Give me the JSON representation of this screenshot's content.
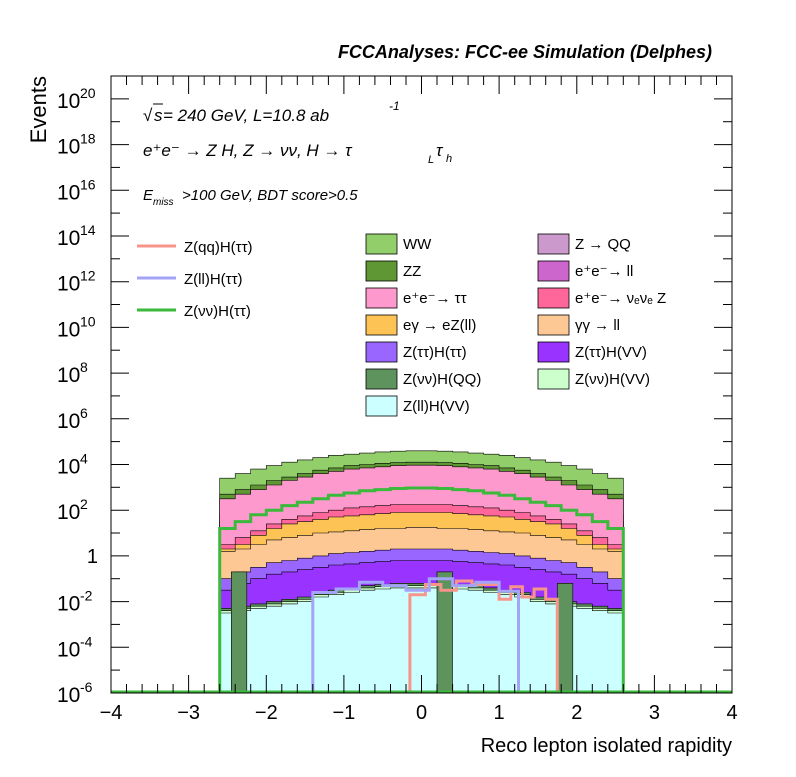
{
  "chart_data": {
    "type": "area",
    "title": "FCCAnalyses: FCC-ee Simulation (Delphes)",
    "xlabel": "Reco lepton isolated rapidity",
    "ylabel": "Events",
    "xlim": [
      -4,
      4
    ],
    "ylim_log10": [
      -6,
      21
    ],
    "log_y": true,
    "x_ticks": [
      "−4",
      "−3",
      "−2",
      "−1",
      "0",
      "1",
      "2",
      "3",
      "4"
    ],
    "y_tick_labels": [
      {
        "base": "10",
        "exp": "20",
        "e": 20
      },
      {
        "base": "10",
        "exp": "18",
        "e": 18
      },
      {
        "base": "10",
        "exp": "16",
        "e": 16
      },
      {
        "base": "10",
        "exp": "14",
        "e": 14
      },
      {
        "base": "10",
        "exp": "12",
        "e": 12
      },
      {
        "base": "10",
        "exp": "10",
        "e": 10
      },
      {
        "base": "10",
        "exp": "8",
        "e": 8
      },
      {
        "base": "10",
        "exp": "6",
        "e": 6
      },
      {
        "base": "10",
        "exp": "4",
        "e": 4
      },
      {
        "base": "10",
        "exp": "2",
        "e": 2
      },
      {
        "base": "1",
        "exp": "",
        "e": 0
      },
      {
        "base": "10",
        "exp": "-2",
        "e": -2
      },
      {
        "base": "10",
        "exp": "-4",
        "e": -4
      },
      {
        "base": "10",
        "exp": "-6",
        "e": -6
      }
    ],
    "annotations": {
      "sqrt_s": "s",
      "energy_lumi": " = 240 GeV, L=10.8 ab",
      "lumi_exp": "-1",
      "process": "e⁺e⁻ → Z H, Z  → νν, H → τ",
      "tau_l": "L",
      "tau_h": "h",
      "cut_prefix": "E",
      "cut_sub": "miss",
      "cut_rest": ">100 GeV, BDT score>0.5"
    },
    "signals": [
      {
        "name": "Z(qq)H(ττ)",
        "color": "#f8958b",
        "bins": [
          [
            -0.15,
            0.05,
            -1.7
          ],
          [
            0.05,
            0.25,
            -1.25
          ],
          [
            0.25,
            0.45,
            -1.5
          ],
          [
            0.45,
            0.65,
            -1.1
          ],
          [
            0.65,
            1.0,
            -1.25
          ],
          [
            1.0,
            1.15,
            -1.9
          ],
          [
            1.15,
            1.3,
            -1.35
          ],
          [
            1.3,
            1.45,
            -1.8
          ],
          [
            1.45,
            1.6,
            -1.45
          ],
          [
            1.6,
            1.75,
            -1.9
          ]
        ]
      },
      {
        "name": "Z(ll)H(ττ)",
        "color": "#a3a3f7",
        "bins": [
          [
            -1.4,
            -1.1,
            -1.6
          ],
          [
            -1.1,
            -0.8,
            -1.45
          ],
          [
            -0.8,
            -0.5,
            -1.15
          ],
          [
            -0.5,
            -0.2,
            -1.3
          ],
          [
            -0.2,
            0.1,
            -1.5
          ],
          [
            0.1,
            0.4,
            -1.0
          ],
          [
            0.4,
            0.7,
            -1.3
          ],
          [
            0.7,
            1.0,
            -1.15
          ],
          [
            1.0,
            1.25,
            -1.55
          ]
        ]
      },
      {
        "name": "Z(νν)H(ττ)",
        "color": "#3bb93b",
        "bins": [
          [
            -2.6,
            -2.4,
            1.2
          ],
          [
            -2.4,
            -2.2,
            1.5
          ],
          [
            -2.2,
            -2.0,
            1.8
          ],
          [
            -2.0,
            -1.8,
            2.0
          ],
          [
            -1.8,
            -1.6,
            2.2
          ],
          [
            -1.6,
            -1.4,
            2.35
          ],
          [
            -1.4,
            -1.2,
            2.5
          ],
          [
            -1.2,
            -1.0,
            2.65
          ],
          [
            -1.0,
            -0.8,
            2.75
          ],
          [
            -0.8,
            -0.6,
            2.85
          ],
          [
            -0.6,
            -0.4,
            2.9
          ],
          [
            -0.4,
            -0.2,
            2.95
          ],
          [
            -0.2,
            0.0,
            2.97
          ],
          [
            0.0,
            0.2,
            2.97
          ],
          [
            0.2,
            0.4,
            2.95
          ],
          [
            0.4,
            0.6,
            2.9
          ],
          [
            0.6,
            0.8,
            2.85
          ],
          [
            0.8,
            1.0,
            2.75
          ],
          [
            1.0,
            1.2,
            2.65
          ],
          [
            1.2,
            1.4,
            2.5
          ],
          [
            1.4,
            1.6,
            2.35
          ],
          [
            1.6,
            1.8,
            2.2
          ],
          [
            1.8,
            2.0,
            2.0
          ],
          [
            2.0,
            2.2,
            1.8
          ],
          [
            2.2,
            2.4,
            1.5
          ],
          [
            2.4,
            2.6,
            1.2
          ]
        ]
      }
    ],
    "backgrounds": [
      {
        "name": "WW",
        "color": "#92cf6a"
      },
      {
        "name": "Z → QQ",
        "color": "#cc99cc"
      },
      {
        "name": "ZZ",
        "color": "#5e9733"
      },
      {
        "name": "e⁺e⁻→ ll",
        "color": "#cc66cc"
      },
      {
        "name": "e⁺e⁻→ ττ",
        "color": "#fd99cc"
      },
      {
        "name": "e⁺e⁻→ νₑνₑ Z",
        "color": "#ff6699"
      },
      {
        "name": "eγ → eZ(ll)",
        "color": "#fdc355"
      },
      {
        "name": "γγ → ll",
        "color": "#fec895"
      },
      {
        "name": "Z(ττ)H(ττ)",
        "color": "#9966ff"
      },
      {
        "name": "Z(ττ)H(VV)",
        "color": "#9933ff"
      },
      {
        "name": "Z(νν)H(QQ)",
        "color": "#5e935e"
      },
      {
        "name": "Z(νν)H(VV)",
        "color": "#ccffcc"
      },
      {
        "name": "Z(ll)H(VV)",
        "color": "#ccffff"
      }
    ],
    "stack_bins": {
      "x_edges": [
        -2.6,
        -2.4,
        -2.2,
        -2.0,
        -1.8,
        -1.6,
        -1.4,
        -1.2,
        -1.0,
        -0.8,
        -0.6,
        -0.4,
        -0.2,
        0.0,
        0.2,
        0.4,
        0.6,
        0.8,
        1.0,
        1.2,
        1.4,
        1.6,
        1.8,
        2.0,
        2.2,
        2.4,
        2.6
      ],
      "log_layers_top": {
        "Z(ll)H(VV)": [
          -2.5,
          -2.4,
          -2.3,
          -2.2,
          -2.1,
          -2.0,
          -1.8,
          -1.7,
          -1.6,
          -1.5,
          -1.45,
          -1.4,
          -1.4,
          -1.4,
          -1.4,
          -1.45,
          -1.5,
          -1.6,
          -1.7,
          -1.8,
          -2.0,
          -2.1,
          -2.2,
          -2.3,
          -2.4,
          -2.5
        ],
        "Z(nn)H(VV)": [
          -2.4,
          -2.3,
          -2.2,
          -2.1,
          -2.0,
          -1.9,
          -1.7,
          -1.6,
          -1.5,
          -1.4,
          -1.35,
          -1.3,
          -1.3,
          -1.3,
          -1.3,
          -1.35,
          -1.4,
          -1.5,
          -1.6,
          -1.7,
          -1.9,
          -2.0,
          -2.1,
          -2.2,
          -2.3,
          -2.4
        ],
        "Z(nn)H(QQ)": [
          -2.3,
          -2.2,
          -2.1,
          -2.0,
          -1.9,
          -1.8,
          -1.6,
          -1.5,
          -1.4,
          -1.3,
          -1.25,
          -1.2,
          -1.2,
          -1.2,
          -1.2,
          -1.25,
          -1.3,
          -1.4,
          -1.5,
          -1.6,
          -1.8,
          -1.9,
          -2.0,
          -2.1,
          -2.2,
          -2.3
        ],
        "Z(tt)H(VV)": [
          -1.5,
          -1.2,
          -1.0,
          -0.8,
          -0.7,
          -0.6,
          -0.5,
          -0.4,
          -0.35,
          -0.3,
          -0.25,
          -0.2,
          -0.2,
          -0.2,
          -0.2,
          -0.25,
          -0.3,
          -0.35,
          -0.4,
          -0.5,
          -0.6,
          -0.7,
          -0.8,
          -1.0,
          -1.2,
          -1.5
        ],
        "Z(tt)H(tt)": [
          -1.0,
          -0.7,
          -0.5,
          -0.3,
          -0.2,
          -0.1,
          0.0,
          0.1,
          0.15,
          0.2,
          0.25,
          0.3,
          0.3,
          0.3,
          0.3,
          0.25,
          0.2,
          0.15,
          0.1,
          0.0,
          -0.1,
          -0.2,
          -0.3,
          -0.5,
          -0.7,
          -1.0
        ],
        "gg-ll": [
          0.2,
          0.3,
          0.5,
          0.7,
          0.8,
          0.9,
          1.0,
          1.05,
          1.1,
          1.15,
          1.2,
          1.2,
          1.25,
          1.25,
          1.2,
          1.2,
          1.15,
          1.1,
          1.05,
          1.0,
          0.9,
          0.8,
          0.7,
          0.5,
          0.3,
          0.2
        ],
        "eg-eZ": [
          0.3,
          0.5,
          0.9,
          1.2,
          1.4,
          1.5,
          1.6,
          1.7,
          1.75,
          1.8,
          1.85,
          1.9,
          1.9,
          1.9,
          1.9,
          1.85,
          1.8,
          1.75,
          1.7,
          1.6,
          1.5,
          1.4,
          1.2,
          0.9,
          0.5,
          0.3
        ],
        "ee-nnZ": [
          0.5,
          0.8,
          1.1,
          1.4,
          1.6,
          1.75,
          1.9,
          2.0,
          2.1,
          2.15,
          2.2,
          2.25,
          2.25,
          2.25,
          2.25,
          2.2,
          2.15,
          2.1,
          2.0,
          1.9,
          1.75,
          1.6,
          1.4,
          1.1,
          0.8,
          0.5
        ],
        "ee-tt": [
          2.5,
          2.7,
          2.9,
          3.1,
          3.3,
          3.45,
          3.6,
          3.7,
          3.8,
          3.85,
          3.9,
          3.95,
          3.97,
          3.97,
          3.95,
          3.9,
          3.85,
          3.8,
          3.7,
          3.6,
          3.45,
          3.3,
          3.1,
          2.9,
          2.7,
          2.5
        ],
        "ee-ll": [
          1.8,
          2.2,
          2.5,
          2.7,
          2.9,
          3.0,
          3.1,
          3.2,
          3.25,
          3.3,
          3.33,
          3.35,
          3.37,
          3.37,
          3.35,
          3.33,
          3.3,
          3.25,
          3.2,
          3.1,
          3.0,
          2.9,
          2.7,
          2.5,
          2.2,
          1.8
        ],
        "ZZ": [
          2.7,
          2.9,
          3.1,
          3.3,
          3.45,
          3.6,
          3.75,
          3.85,
          3.95,
          4.0,
          4.05,
          4.08,
          4.1,
          4.1,
          4.08,
          4.05,
          4.0,
          3.95,
          3.85,
          3.75,
          3.6,
          3.45,
          3.3,
          3.1,
          2.9,
          2.7
        ],
        "Z-QQ": [
          1.5,
          1.2,
          1.3,
          1.4,
          1.5,
          1.6,
          1.7,
          1.8,
          1.85,
          1.9,
          1.95,
          2.0,
          2.0,
          2.0,
          2.0,
          1.95,
          1.9,
          1.85,
          1.8,
          1.7,
          1.6,
          1.5,
          1.4,
          1.3,
          1.2,
          1.5
        ],
        "WW": [
          3.4,
          3.6,
          3.8,
          3.95,
          4.1,
          4.2,
          4.3,
          4.4,
          4.45,
          4.5,
          4.55,
          4.58,
          4.6,
          4.6,
          4.58,
          4.55,
          4.5,
          4.45,
          4.4,
          4.3,
          4.2,
          4.1,
          3.95,
          3.8,
          3.6,
          3.4
        ]
      },
      "dark_spikes": [
        [
          -2.45,
          -2.25,
          -0.7
        ],
        [
          0.2,
          0.4,
          -0.7
        ],
        [
          1.75,
          1.95,
          -1.2
        ]
      ]
    }
  }
}
